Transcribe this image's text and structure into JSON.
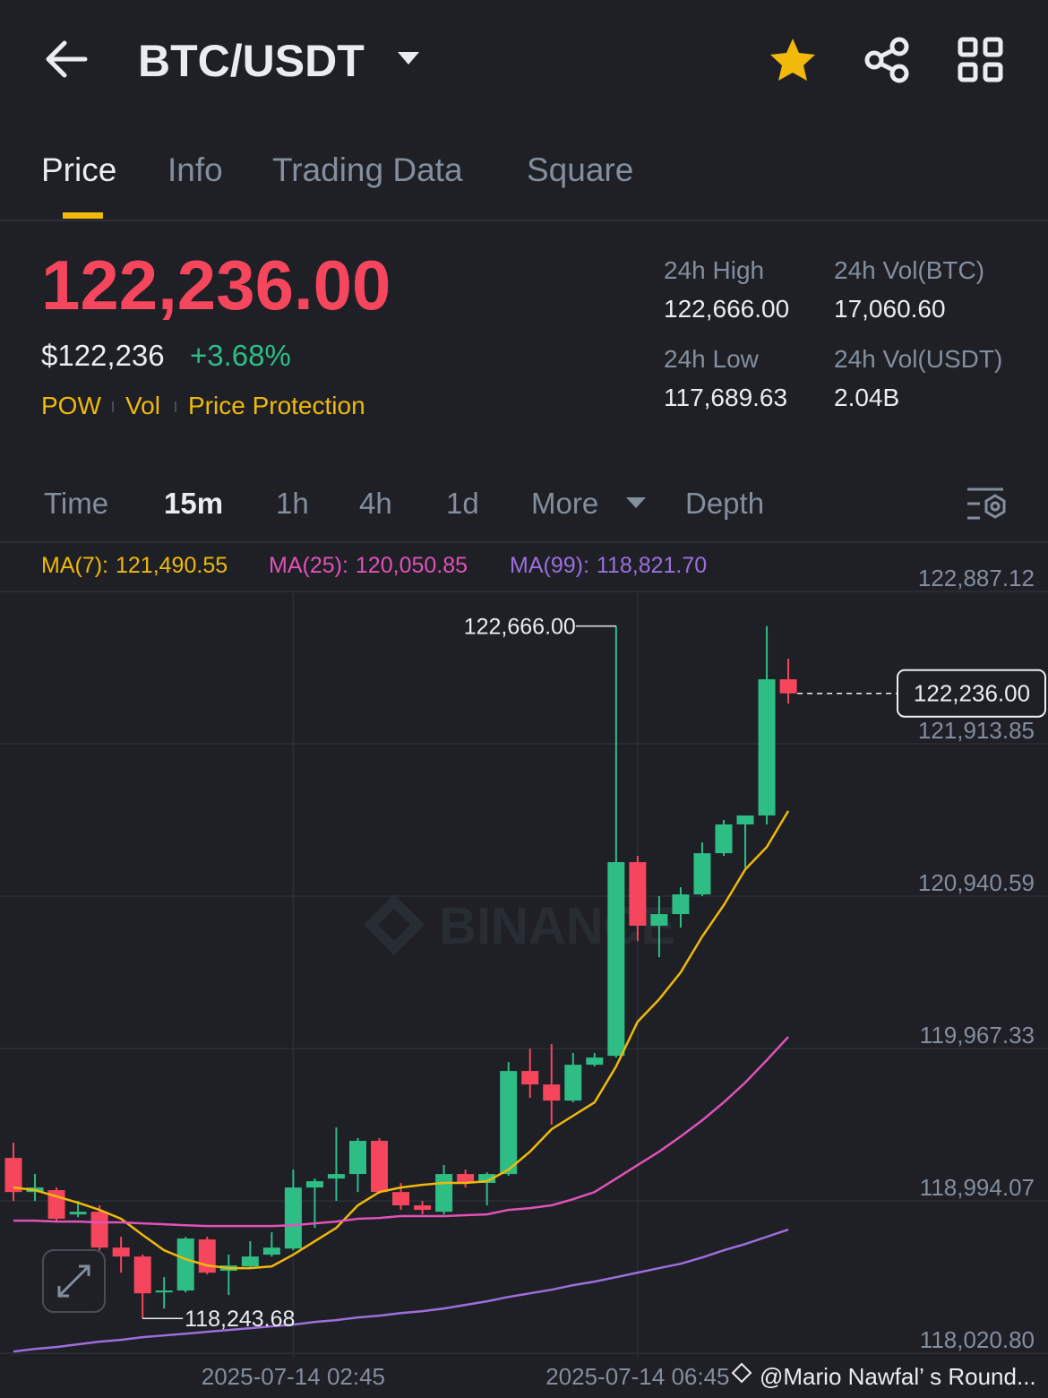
{
  "header": {
    "title": "BTC/USDT"
  },
  "tabs": [
    "Price",
    "Info",
    "Trading Data",
    "Square"
  ],
  "ticker": {
    "price": "122,236.00",
    "usd_price": "$122,236",
    "change": "+3.68%",
    "tags": [
      "POW",
      "Vol",
      "Price Protection"
    ],
    "stats": [
      {
        "label": "24h High",
        "value": "122,666.00"
      },
      {
        "label": "24h Vol(BTC)",
        "value": "17,060.60"
      },
      {
        "label": "24h Low",
        "value": "117,689.63"
      },
      {
        "label": "24h Vol(USDT)",
        "value": "2.04B"
      }
    ]
  },
  "intervals": [
    "Time",
    "15m",
    "1h",
    "4h",
    "1d",
    "More",
    "Depth"
  ],
  "chart": {
    "type": "candlestick",
    "up_color": "#2ebd85",
    "down_color": "#f6465d",
    "ylim": [
      117993,
      123173
    ],
    "yticks": [
      {
        "value": 122887.12,
        "label": "122,887.12"
      },
      {
        "value": 121913.85,
        "label": "121,913.85"
      },
      {
        "value": 120940.59,
        "label": "120,940.59"
      },
      {
        "value": 119967.33,
        "label": "119,967.33"
      },
      {
        "value": 118994.07,
        "label": "118,994.07"
      },
      {
        "value": 118020.8,
        "label": "118,020.80"
      }
    ],
    "categories": [
      null,
      null,
      null,
      null,
      null,
      null,
      null,
      null,
      null,
      null,
      null,
      null,
      null,
      "2025-07-14 02:45",
      null,
      null,
      null,
      null,
      null,
      null,
      null,
      null,
      null,
      null,
      null,
      null,
      null,
      null,
      null,
      "2025-07-14 06:45",
      null,
      null,
      null,
      null,
      null,
      null,
      null
    ],
    "candles": [
      [
        119269,
        119366,
        118994,
        119051
      ],
      [
        119051,
        119166,
        118994,
        119080
      ],
      [
        119063,
        119080,
        118868,
        118880
      ],
      [
        118908,
        118994,
        118891,
        118925
      ],
      [
        118925,
        118966,
        118679,
        118696
      ],
      [
        118696,
        118765,
        118536,
        118639
      ],
      [
        118639,
        118651,
        118243.68,
        118404
      ],
      [
        118410,
        118507,
        118307,
        118422
      ],
      [
        118422,
        118765,
        118410,
        118754
      ],
      [
        118748,
        118765,
        118525,
        118536
      ],
      [
        118548,
        118651,
        118393,
        118582
      ],
      [
        118576,
        118737,
        118559,
        118639
      ],
      [
        118651,
        118794,
        118639,
        118696
      ],
      [
        118690,
        119194,
        118679,
        119080
      ],
      [
        119080,
        119137,
        118822,
        119120
      ],
      [
        119137,
        119463,
        118994,
        119166
      ],
      [
        119166,
        119395,
        119051,
        119378
      ],
      [
        119378,
        119395,
        119040,
        119051
      ],
      [
        119051,
        119109,
        118937,
        118966
      ],
      [
        118966,
        118994,
        118908,
        118937
      ],
      [
        118925,
        119223,
        118908,
        119166
      ],
      [
        119166,
        119194,
        119080,
        119109
      ],
      [
        119109,
        119177,
        118966,
        119166
      ],
      [
        119166,
        119881,
        119154,
        119824
      ],
      [
        119824,
        119967,
        119652,
        119738
      ],
      [
        119738,
        119996,
        119481,
        119635
      ],
      [
        119635,
        119939,
        119624,
        119864
      ],
      [
        119864,
        119939,
        119853,
        119910
      ],
      [
        119921,
        122666,
        119910,
        121158
      ],
      [
        121158,
        121198,
        120654,
        120752
      ],
      [
        120752,
        120941,
        120551,
        120826
      ],
      [
        120826,
        120998,
        120740,
        120952
      ],
      [
        120952,
        121284,
        120941,
        121215
      ],
      [
        121215,
        121427,
        121198,
        121399
      ],
      [
        121399,
        121456,
        121124,
        121456
      ],
      [
        121456,
        122666,
        121399,
        122326
      ],
      [
        122326,
        122458,
        122171,
        122236
      ]
    ],
    "ma": [
      {
        "label": "MA(7):",
        "value": "121,490.55",
        "color": "#f0b90b",
        "values": [
          119080,
          119063,
          119023,
          118983,
          118937,
          118880,
          118777,
          118679,
          118622,
          118582,
          118565,
          118565,
          118576,
          118651,
          118737,
          118822,
          118966,
          119051,
          119080,
          119097,
          119109,
          119109,
          119120,
          119194,
          119309,
          119452,
          119538,
          119624,
          119853,
          120139,
          120282,
          120454,
          120683,
          120883,
          121112,
          121255,
          121485
        ]
      },
      {
        "label": "MA(25):",
        "value": "120,050.85",
        "color": "#e052b8",
        "values": [
          118868,
          118868,
          118862,
          118862,
          118857,
          118857,
          118851,
          118845,
          118839,
          118834,
          118834,
          118834,
          118834,
          118839,
          118851,
          118862,
          118880,
          118885,
          118897,
          118897,
          118897,
          118903,
          118908,
          118937,
          118948,
          118966,
          119005,
          119051,
          119137,
          119223,
          119309,
          119406,
          119509,
          119624,
          119750,
          119893,
          120042
        ]
      },
      {
        "label": "MA(99):",
        "value": "118,821.70",
        "color": "#9c6fdc",
        "values": [
          118032,
          118049,
          118061,
          118078,
          118095,
          118107,
          118124,
          118135,
          118146,
          118158,
          118170,
          118181,
          118193,
          118204,
          118221,
          118233,
          118250,
          118261,
          118278,
          118290,
          118307,
          118330,
          118353,
          118381,
          118404,
          118427,
          118456,
          118479,
          118507,
          118536,
          118565,
          118593,
          118633,
          118679,
          118719,
          118765,
          118811
        ]
      }
    ],
    "high_label": "122,666.00",
    "low_label": "118,243.68",
    "last_label": "122,236.00"
  },
  "watermark": "BINANCE",
  "footer": "@Mario Nawfal’ s Round..."
}
